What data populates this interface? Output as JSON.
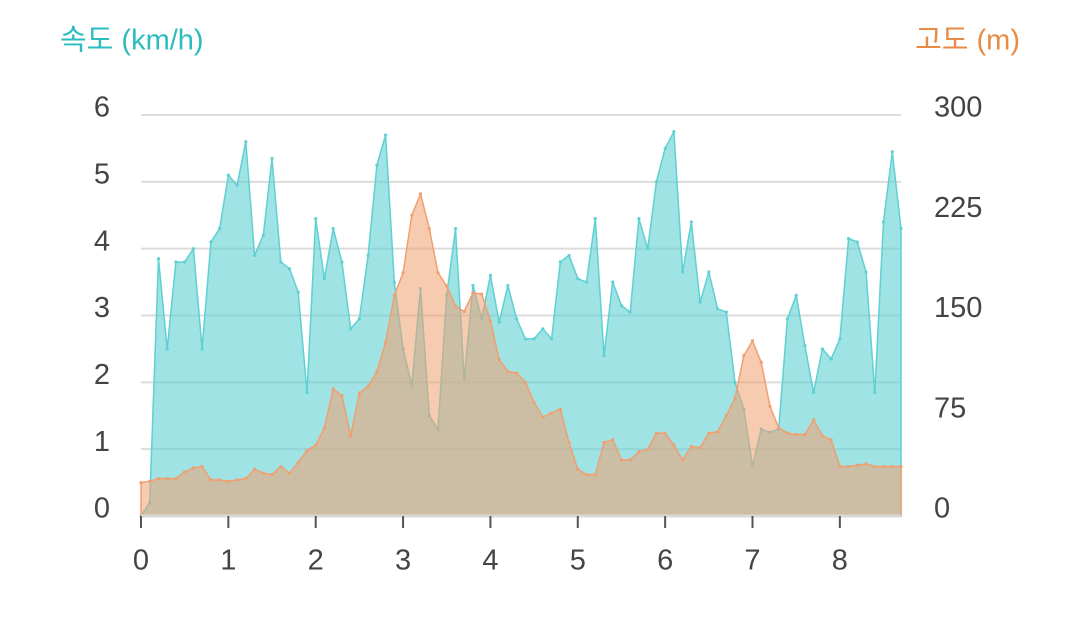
{
  "chart_data": {
    "type": "area",
    "ylabel": "속도 (km/h)",
    "y2label": "고도 (m)",
    "x": [
      0,
      0.1,
      0.2,
      0.3,
      0.4,
      0.5,
      0.6,
      0.7,
      0.8,
      0.9,
      1,
      1.1,
      1.2,
      1.3,
      1.4,
      1.5,
      1.6,
      1.7,
      1.8,
      1.9,
      2,
      2.1,
      2.2,
      2.3,
      2.4,
      2.5,
      2.6,
      2.7,
      2.8,
      2.9,
      3,
      3.1,
      3.2,
      3.3,
      3.4,
      3.5,
      3.6,
      3.7,
      3.8,
      3.9,
      4,
      4.1,
      4.2,
      4.3,
      4.4,
      4.5,
      4.6,
      4.7,
      4.8,
      4.9,
      5,
      5.1,
      5.2,
      5.3,
      5.4,
      5.5,
      5.6,
      5.7,
      5.8,
      5.9,
      6,
      6.1,
      6.2,
      6.3,
      6.4,
      6.5,
      6.6,
      6.7,
      6.8,
      6.9,
      7,
      7.1,
      7.2,
      7.3,
      7.4,
      7.5,
      7.6,
      7.7,
      7.8,
      7.9,
      8,
      8.1,
      8.2,
      8.3,
      8.4,
      8.5,
      8.6,
      8.7
    ],
    "series": [
      {
        "color": "#5fd0d3",
        "axis": "y",
        "values": [
          0,
          0.2,
          3.85,
          2.5,
          3.8,
          3.8,
          4.0,
          2.5,
          4.1,
          4.3,
          5.1,
          4.95,
          5.6,
          3.9,
          4.2,
          5.35,
          3.8,
          3.7,
          3.35,
          1.85,
          4.45,
          3.55,
          4.3,
          3.8,
          2.8,
          2.95,
          3.9,
          5.25,
          5.7,
          3.5,
          2.5,
          1.95,
          3.4,
          1.5,
          1.3,
          3.3,
          4.3,
          2.05,
          3.45,
          2.95,
          3.6,
          2.9,
          3.45,
          2.95,
          2.65,
          2.65,
          2.8,
          2.65,
          3.8,
          3.9,
          3.55,
          3.5,
          4.45,
          2.4,
          3.5,
          3.15,
          3.05,
          4.45,
          4.0,
          5.0,
          5.5,
          5.75,
          3.65,
          4.4,
          3.2,
          3.65,
          3.1,
          3.05,
          2.0,
          1.6,
          0.75,
          1.3,
          1.25,
          1.3,
          2.95,
          3.3,
          2.55,
          1.85,
          2.5,
          2.35,
          2.65,
          4.15,
          4.1,
          3.65,
          1.85,
          4.4,
          5.45,
          4.3
        ]
      },
      {
        "color": "#f0a070",
        "axis": "y2",
        "values": [
          25,
          26,
          28,
          28,
          28,
          33,
          36,
          37,
          27,
          27,
          26,
          27,
          28,
          35,
          32,
          31,
          37,
          32,
          40,
          49,
          53,
          66,
          95,
          90,
          60,
          92,
          97,
          108,
          130,
          165,
          182,
          225,
          241,
          215,
          182,
          172,
          157,
          153,
          167,
          166,
          146,
          117,
          108,
          107,
          100,
          85,
          74,
          77,
          80,
          55,
          35,
          31,
          31,
          55,
          57,
          42,
          42,
          48,
          50,
          62,
          62,
          53,
          42,
          52,
          51,
          62,
          63,
          75,
          88,
          120,
          131,
          115,
          82,
          66,
          62,
          61,
          61,
          72,
          60,
          57,
          37,
          37,
          38,
          39,
          37,
          37,
          37,
          37
        ]
      }
    ],
    "xlim": [
      0,
      8.7
    ],
    "xticks": [
      0,
      1,
      2,
      3,
      4,
      5,
      6,
      7,
      8
    ],
    "ylim": [
      0,
      6
    ],
    "yticks": [
      0,
      1,
      2,
      3,
      4,
      5,
      6
    ],
    "y2lim": [
      0,
      300
    ],
    "y2ticks": [
      0,
      75,
      150,
      225,
      300
    ],
    "grid": true
  }
}
